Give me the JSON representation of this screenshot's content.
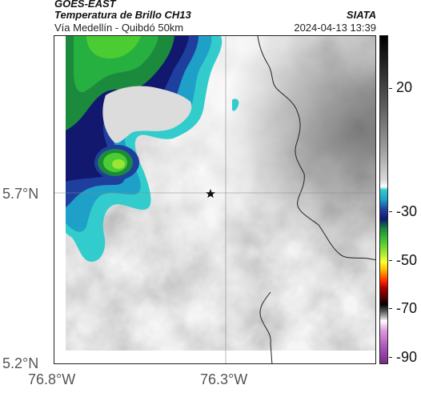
{
  "header": {
    "satellite": "GOES-EAST",
    "product": "Temperatura de Brillo CH13",
    "route": "Vía Medellín - Quibdó 50km",
    "agency": "SIATA",
    "datetime": "2024-04-13 13:39"
  },
  "map": {
    "lat_labels": [
      "5.7°N",
      "5.2°N"
    ],
    "lon_labels": [
      "76.8°W",
      "76.3°W"
    ],
    "marker": "star-icon"
  },
  "colorbar": {
    "ticks": [
      "20",
      "-30",
      "-50",
      "-70",
      "-90"
    ]
  },
  "colors": {
    "frame": "#222222",
    "text": "#555555",
    "grid": "#888888"
  }
}
